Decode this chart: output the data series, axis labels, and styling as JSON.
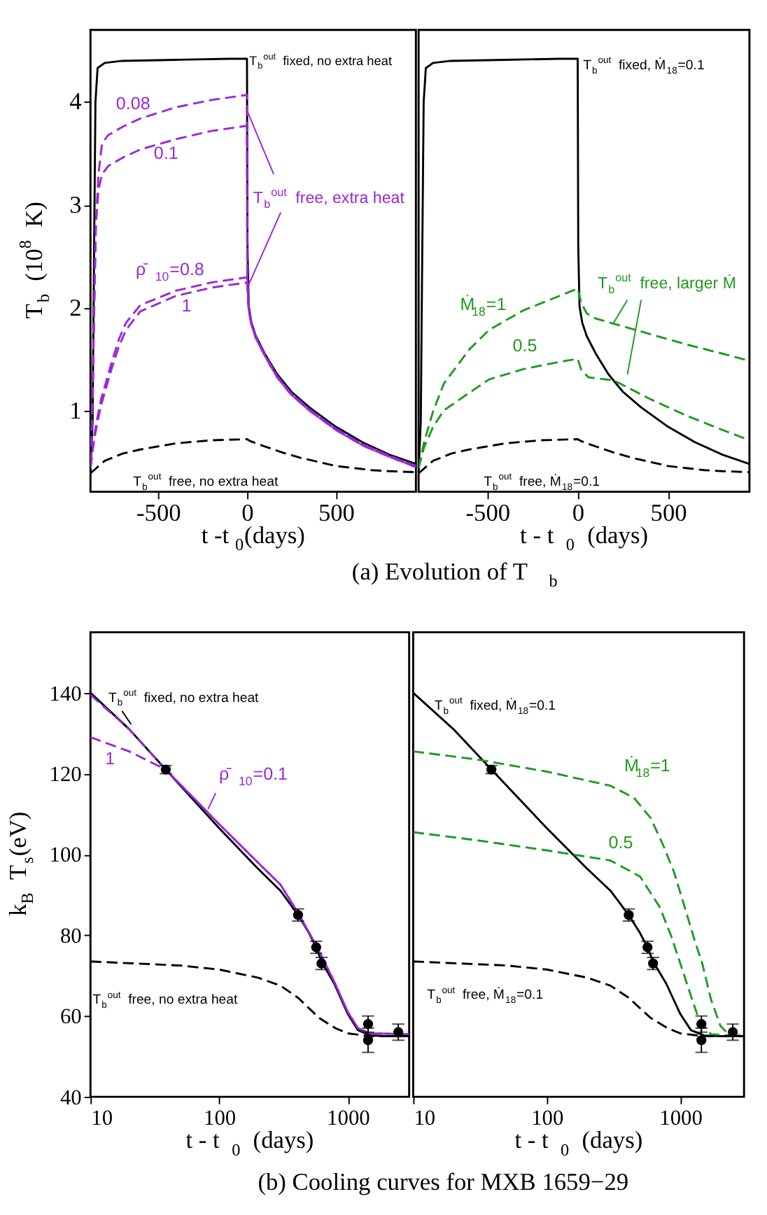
{
  "chart_data": [
    {
      "type": "line",
      "xlabel": "t -t$_{0}$(days)",
      "ylabel": "T$_{b}$ (10$^{8}$ K)",
      "xlim": [
        -880,
        950
      ],
      "ylim": [
        0.22,
        4.7
      ],
      "xticks": [
        -500,
        0,
        500
      ],
      "yticks": [
        1,
        2,
        3,
        4
      ],
      "grid": false,
      "legend": false,
      "marker": "none",
      "annotations": [
        {
          "text": "T$_{b}$$^{out}$ free, extra heat",
          "x": 5,
          "y": 3.9
        },
        "(a) Evolution of T$_{b}$"
      ],
      "series": [
        {
          "name": "T$_{b}$$^{out}$ fixed, no extra heat",
          "color": "#000000",
          "line_style": "solid",
          "x": [
            -880,
            -868,
            -860,
            -852,
            -840,
            -800,
            -700,
            -400,
            -100,
            0,
            0.5,
            1,
            3,
            10,
            25,
            50,
            100,
            170,
            250,
            350,
            500,
            650,
            800,
            950
          ],
          "values": [
            0.42,
            0.9,
            2.5,
            4.0,
            4.33,
            4.38,
            4.4,
            4.41,
            4.42,
            4.42,
            4.2,
            3.8,
            2.6,
            2.02,
            1.86,
            1.73,
            1.56,
            1.36,
            1.19,
            1.04,
            0.85,
            0.7,
            0.58,
            0.49
          ]
        },
        {
          "name": "0.08",
          "color": "#9b27d8",
          "line_style": "dashed",
          "x": [
            -880,
            -870,
            -860,
            -850,
            -835,
            -815,
            -780,
            -700,
            -600,
            -400,
            -200,
            0,
            2,
            10,
            25,
            50,
            100,
            170,
            250,
            350,
            500,
            650,
            800,
            950
          ],
          "values": [
            0.5,
            1.0,
            1.9,
            2.8,
            3.3,
            3.6,
            3.68,
            3.76,
            3.84,
            3.95,
            4.02,
            4.07,
            2.3,
            2.0,
            1.85,
            1.72,
            1.55,
            1.34,
            1.17,
            1.02,
            0.83,
            0.68,
            0.57,
            0.47
          ]
        },
        {
          "name": "0.1",
          "color": "#9b27d8",
          "line_style": "dashed",
          "x": [
            -880,
            -870,
            -860,
            -850,
            -835,
            -815,
            -780,
            -700,
            -600,
            -400,
            -200,
            0,
            2,
            10,
            25,
            50,
            100,
            170,
            250,
            350,
            500,
            650,
            800,
            950
          ],
          "values": [
            0.5,
            1.0,
            1.9,
            2.8,
            3.15,
            3.3,
            3.38,
            3.46,
            3.54,
            3.64,
            3.72,
            3.77,
            2.3,
            2.0,
            1.85,
            1.72,
            1.55,
            1.34,
            1.17,
            1.02,
            0.83,
            0.68,
            0.57,
            0.47
          ]
        },
        {
          "name": "ρ̄$_{10}$=0.8",
          "color": "#9b27d8",
          "line_style": "dashed",
          "x": [
            -880,
            -870,
            -860,
            -840,
            -820,
            -790,
            -760,
            -720,
            -680,
            -600,
            -400,
            -200,
            0,
            2,
            10,
            25,
            50,
            100,
            170,
            250,
            350,
            500,
            650,
            800,
            950
          ],
          "values": [
            0.45,
            0.6,
            0.75,
            0.95,
            1.12,
            1.3,
            1.48,
            1.7,
            1.86,
            2.03,
            2.17,
            2.25,
            2.3,
            2.25,
            1.99,
            1.84,
            1.71,
            1.54,
            1.33,
            1.16,
            1.01,
            0.82,
            0.67,
            0.56,
            0.46
          ]
        },
        {
          "name": "1",
          "color": "#9b27d8",
          "line_style": "dashed",
          "x": [
            -880,
            -870,
            -860,
            -840,
            -820,
            -790,
            -760,
            -720,
            -680,
            -600,
            -400,
            -200,
            0,
            2,
            10,
            25,
            50,
            100,
            170,
            250,
            350,
            500,
            650,
            800,
            950
          ],
          "values": [
            0.45,
            0.58,
            0.72,
            0.9,
            1.06,
            1.24,
            1.42,
            1.63,
            1.79,
            1.97,
            2.12,
            2.2,
            2.25,
            2.2,
            1.98,
            1.84,
            1.71,
            1.54,
            1.33,
            1.16,
            1.01,
            0.82,
            0.67,
            0.56,
            0.46
          ]
        },
        {
          "name": "T$_{b}$$^{out}$ free, no extra heat",
          "color": "#000000",
          "line_style": "dashed",
          "x": [
            -880,
            -800,
            -700,
            -600,
            -400,
            -200,
            0,
            20,
            100,
            200,
            300,
            400,
            500,
            600,
            700,
            800,
            950
          ],
          "values": [
            0.4,
            0.52,
            0.59,
            0.63,
            0.69,
            0.72,
            0.73,
            0.71,
            0.66,
            0.6,
            0.55,
            0.51,
            0.47,
            0.45,
            0.43,
            0.42,
            0.41
          ]
        }
      ]
    },
    {
      "type": "line",
      "xlabel": "t - t$_{0}$ (days)",
      "xlim": [
        -880,
        950
      ],
      "ylim": [
        0.22,
        4.7
      ],
      "xticks": [
        -500,
        0,
        500
      ],
      "yticks": [
        1,
        2,
        3,
        4
      ],
      "tick_labels": "x",
      "grid": false,
      "legend": false,
      "marker": "none",
      "annotations": [
        {
          "text": "T$_{b}$$^{out}$ free, larger Ṁ",
          "x": 199,
          "y": 1.86
        }
      ],
      "series": [
        {
          "name": "T$_{b}$$^{out}$ fixed, Ṁ$_{18}$=0.1",
          "color": "#000000",
          "line_style": "solid",
          "x": [
            -880,
            -868,
            -860,
            -852,
            -840,
            -800,
            -700,
            -400,
            -100,
            0,
            0.5,
            1,
            3,
            10,
            25,
            50,
            100,
            170,
            250,
            350,
            500,
            650,
            800,
            950
          ],
          "values": [
            0.42,
            0.9,
            2.5,
            4.0,
            4.33,
            4.38,
            4.4,
            4.41,
            4.42,
            4.42,
            4.2,
            3.8,
            2.6,
            2.02,
            1.86,
            1.73,
            1.56,
            1.36,
            1.19,
            1.04,
            0.85,
            0.7,
            0.58,
            0.49
          ]
        },
        {
          "name": "Ṁ$_{18}$=1",
          "color": "#1f9a1f",
          "line_style": "dashed",
          "x": [
            -880,
            -850,
            -800,
            -740,
            -600,
            -490,
            -300,
            -100,
            0,
            20,
            50,
            100,
            200,
            400,
            600,
            800,
            950
          ],
          "values": [
            0.45,
            0.7,
            1.0,
            1.27,
            1.6,
            1.79,
            1.98,
            2.12,
            2.19,
            2.05,
            1.95,
            1.9,
            1.85,
            1.75,
            1.65,
            1.56,
            1.49
          ]
        },
        {
          "name": "0.5",
          "color": "#1f9a1f",
          "line_style": "dashed",
          "x": [
            -880,
            -850,
            -800,
            -740,
            -600,
            -490,
            -300,
            -100,
            0,
            20,
            60,
            200,
            400,
            600,
            800,
            950
          ],
          "values": [
            0.45,
            0.65,
            0.85,
            1.01,
            1.18,
            1.31,
            1.41,
            1.48,
            1.51,
            1.4,
            1.33,
            1.3,
            1.12,
            0.96,
            0.82,
            0.72
          ]
        },
        {
          "name": "T$_{b}$$^{out}$ free, Ṁ$_{18}$=0.1",
          "color": "#000000",
          "line_style": "dashed",
          "x": [
            -880,
            -800,
            -700,
            -600,
            -400,
            -200,
            0,
            20,
            100,
            200,
            300,
            400,
            500,
            600,
            700,
            800,
            950
          ],
          "values": [
            0.4,
            0.52,
            0.59,
            0.63,
            0.69,
            0.72,
            0.73,
            0.71,
            0.66,
            0.6,
            0.55,
            0.51,
            0.47,
            0.45,
            0.43,
            0.42,
            0.41
          ]
        }
      ]
    },
    {
      "type": "line",
      "xlabel": "t - t$_{0}$ (days)",
      "ylabel": "k$_{B}$ T$_{s}$(eV)",
      "log": "x",
      "xlim": [
        10,
        3000
      ],
      "ylim": [
        40,
        155
      ],
      "xticks": [
        10,
        100,
        1000
      ],
      "yticks": [
        40,
        60,
        80,
        100,
        120,
        140
      ],
      "grid": false,
      "legend": false,
      "marker": "none",
      "annotations": [
        "(b) Cooling curves for MXB 1659−29"
      ],
      "series": [
        {
          "name": "T$_{b}$$^{out}$ fixed, no extra heat",
          "color": "#000000",
          "line_style": "solid",
          "x": [
            10,
            20,
            38.5,
            100,
            200,
            300,
            411,
            500,
            568,
            625,
            785,
            1000,
            1200,
            1500,
            2000,
            3000
          ],
          "values": [
            140,
            131,
            121,
            106.5,
            96.5,
            91,
            85,
            80.5,
            77,
            73.5,
            68,
            60.5,
            56.5,
            55.2,
            55,
            55
          ]
        },
        {
          "name": "1",
          "color": "#9b27d8",
          "line_style": "dashed",
          "x": [
            10,
            20,
            38.5,
            100,
            200,
            300,
            411,
            568,
            785,
            1000,
            1200,
            1500,
            3000
          ],
          "values": [
            129,
            125.5,
            121,
            107.5,
            98,
            92.5,
            85.5,
            77.5,
            68.5,
            61,
            57,
            55.7,
            55.5
          ]
        },
        {
          "name": "ρ̄$_{10}$=0.1",
          "color": "#9b27d8",
          "line_style": "dashed",
          "x": [
            10,
            20,
            38.5,
            100,
            200,
            300,
            411,
            568,
            785,
            1000,
            1200,
            1500,
            3000
          ],
          "values": [
            139.5,
            131,
            121,
            107.5,
            98,
            92.5,
            85.5,
            77.5,
            68.5,
            61,
            57,
            55.7,
            55.5
          ]
        },
        {
          "name": "T$_{b}$$^{out}$ free, no extra heat",
          "color": "#000000",
          "line_style": "dashed",
          "x": [
            10,
            50,
            100,
            200,
            300,
            411,
            600,
            800,
            1000,
            1500,
            3000
          ],
          "values": [
            73.5,
            72.5,
            71.5,
            69.5,
            67.5,
            64.5,
            59.5,
            57,
            55.7,
            55,
            55
          ]
        },
        {
          "type": "scatter",
          "marker": "circle",
          "color": "#000000",
          "x": [
            38.5,
            411,
            568,
            625,
            1438,
            1438,
            2470
          ],
          "values": [
            121,
            85,
            77,
            73,
            58,
            54,
            56
          ],
          "errors": [
            1,
            1.5,
            1.5,
            1.5,
            2,
            3,
            2
          ]
        }
      ]
    },
    {
      "type": "line",
      "xlabel": "t - t$_{0}$ (days)",
      "log": "x",
      "xlim": [
        10,
        3000
      ],
      "ylim": [
        40,
        155
      ],
      "xticks": [
        10,
        100,
        1000
      ],
      "yticks": [
        40,
        60,
        80,
        100,
        120,
        140
      ],
      "tick_labels": "x",
      "grid": false,
      "legend": false,
      "marker": "none",
      "series": [
        {
          "name": "T$_{b}$$^{out}$ fixed, Ṁ$_{18}$=0.1",
          "color": "#000000",
          "line_style": "solid",
          "x": [
            10,
            20,
            38.5,
            100,
            200,
            300,
            411,
            500,
            568,
            625,
            785,
            1000,
            1200,
            1500,
            2000,
            3000
          ],
          "values": [
            140,
            131,
            121,
            106.5,
            96.5,
            91,
            85,
            80.5,
            77,
            73.5,
            68,
            60.5,
            56.5,
            55.2,
            55,
            55
          ]
        },
        {
          "name": "Ṁ$_{18}$=1",
          "color": "#1f9a1f",
          "line_style": "dashed",
          "x": [
            10,
            30,
            100,
            300,
            450,
            600,
            750,
            900,
            1100,
            1300,
            1460,
            1700,
            2000,
            2300,
            3000
          ],
          "values": [
            125.5,
            123.5,
            120.5,
            117,
            114,
            109,
            102,
            95.5,
            86,
            78,
            73,
            64,
            57.5,
            55.5,
            55
          ]
        },
        {
          "name": "0.5",
          "color": "#1f9a1f",
          "line_style": "dashed",
          "x": [
            10,
            30,
            100,
            300,
            500,
            700,
            850,
            1000,
            1200,
            1400,
            1700,
            3000
          ],
          "values": [
            105.5,
            103.5,
            101,
            98.5,
            94.5,
            87,
            80,
            73,
            65,
            58.5,
            55.5,
            55
          ]
        },
        {
          "name": "T$_{b}$$^{out}$ free, Ṁ$_{18}$=0.1",
          "color": "#000000",
          "line_style": "dashed",
          "x": [
            10,
            50,
            100,
            200,
            300,
            411,
            600,
            800,
            1000,
            1500,
            3000
          ],
          "values": [
            73.5,
            72.5,
            71.5,
            69.5,
            67.5,
            64.5,
            59.5,
            57,
            55.7,
            55,
            55
          ]
        },
        {
          "type": "scatter",
          "marker": "circle",
          "color": "#000000",
          "x": [
            38.5,
            411,
            568,
            625,
            1438,
            1438,
            2470
          ],
          "values": [
            121,
            85,
            77,
            73,
            58,
            54,
            56
          ],
          "errors": [
            1,
            1.5,
            1.5,
            1.5,
            2,
            3,
            2
          ]
        }
      ]
    }
  ]
}
